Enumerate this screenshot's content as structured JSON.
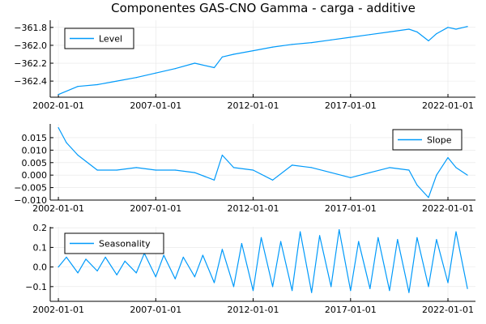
{
  "title": "Componentes GAS-CNO Gamma - carga - additive",
  "colors": {
    "series": "#009AFA",
    "grid": "#e6e6e6",
    "axis": "#000000"
  },
  "chart_data": [
    {
      "type": "line",
      "x_type": "date",
      "x_range": [
        "2001-08-01",
        "2023-06-01"
      ],
      "x_ticks": [
        "2002-01-01",
        "2007-01-01",
        "2012-01-01",
        "2017-01-01",
        "2022-01-01"
      ],
      "ylim": [
        -362.58,
        -361.72
      ],
      "y_ticks": [
        -362.4,
        -362.2,
        -362.0,
        -361.8
      ],
      "y_tick_labels": [
        "−362.4",
        "−362.2",
        "−362.0",
        "−361.8"
      ],
      "grid": true,
      "legend": {
        "position": "top-left",
        "entries": [
          "Level"
        ]
      },
      "series": [
        {
          "name": "Level",
          "points": [
            [
              "2002-01-01",
              -362.55
            ],
            [
              "2003-01-01",
              -362.46
            ],
            [
              "2004-01-01",
              -362.44
            ],
            [
              "2005-01-01",
              -362.4
            ],
            [
              "2006-01-01",
              -362.36
            ],
            [
              "2007-01-01",
              -362.31
            ],
            [
              "2008-01-01",
              -362.26
            ],
            [
              "2009-01-01",
              -362.2
            ],
            [
              "2010-01-01",
              -362.25
            ],
            [
              "2010-06-01",
              -362.13
            ],
            [
              "2011-01-01",
              -362.1
            ],
            [
              "2012-01-01",
              -362.06
            ],
            [
              "2013-01-01",
              -362.02
            ],
            [
              "2014-01-01",
              -361.99
            ],
            [
              "2015-01-01",
              -361.97
            ],
            [
              "2016-01-01",
              -361.94
            ],
            [
              "2017-01-01",
              -361.91
            ],
            [
              "2018-01-01",
              -361.88
            ],
            [
              "2019-01-01",
              -361.85
            ],
            [
              "2020-01-01",
              -361.82
            ],
            [
              "2020-06-01",
              -361.85
            ],
            [
              "2021-01-01",
              -361.95
            ],
            [
              "2021-06-01",
              -361.87
            ],
            [
              "2022-01-01",
              -361.8
            ],
            [
              "2022-06-01",
              -361.82
            ],
            [
              "2023-01-01",
              -361.79
            ]
          ]
        }
      ]
    },
    {
      "type": "line",
      "x_type": "date",
      "x_range": [
        "2001-08-01",
        "2023-06-01"
      ],
      "x_ticks": [
        "2002-01-01",
        "2007-01-01",
        "2012-01-01",
        "2017-01-01",
        "2022-01-01"
      ],
      "ylim": [
        -0.01,
        0.0205
      ],
      "y_ticks": [
        -0.01,
        -0.005,
        0.0,
        0.005,
        0.01,
        0.015
      ],
      "y_tick_labels": [
        "−0.010",
        "−0.005",
        "0.000",
        "0.005",
        "0.010",
        "0.015"
      ],
      "grid": true,
      "legend": {
        "position": "top-right",
        "entries": [
          "Slope"
        ]
      },
      "series": [
        {
          "name": "Slope",
          "points": [
            [
              "2002-01-01",
              0.019
            ],
            [
              "2002-06-01",
              0.013
            ],
            [
              "2003-01-01",
              0.008
            ],
            [
              "2004-01-01",
              0.002
            ],
            [
              "2005-01-01",
              0.002
            ],
            [
              "2006-01-01",
              0.003
            ],
            [
              "2007-01-01",
              0.002
            ],
            [
              "2008-01-01",
              0.002
            ],
            [
              "2009-01-01",
              0.001
            ],
            [
              "2010-01-01",
              -0.002
            ],
            [
              "2010-06-01",
              0.008
            ],
            [
              "2011-01-01",
              0.003
            ],
            [
              "2012-01-01",
              0.002
            ],
            [
              "2013-01-01",
              -0.002
            ],
            [
              "2014-01-01",
              0.004
            ],
            [
              "2015-01-01",
              0.003
            ],
            [
              "2016-01-01",
              0.001
            ],
            [
              "2017-01-01",
              -0.001
            ],
            [
              "2018-01-01",
              0.001
            ],
            [
              "2019-01-01",
              0.003
            ],
            [
              "2020-01-01",
              0.002
            ],
            [
              "2020-06-01",
              -0.004
            ],
            [
              "2021-01-01",
              -0.009
            ],
            [
              "2021-06-01",
              0.0
            ],
            [
              "2022-01-01",
              0.007
            ],
            [
              "2022-06-01",
              0.003
            ],
            [
              "2023-01-01",
              0.0
            ]
          ]
        }
      ]
    },
    {
      "type": "line",
      "x_type": "date",
      "x_range": [
        "2001-08-01",
        "2023-06-01"
      ],
      "x_ticks": [
        "2002-01-01",
        "2007-01-01",
        "2012-01-01",
        "2017-01-01",
        "2022-01-01"
      ],
      "ylim": [
        -0.175,
        0.205
      ],
      "y_ticks": [
        -0.1,
        0.0,
        0.1,
        0.2
      ],
      "y_tick_labels": [
        "−0.1",
        "0.0",
        "0.1",
        "0.2"
      ],
      "grid": true,
      "legend": {
        "position": "top-left",
        "entries": [
          "Seasonality"
        ]
      },
      "series": [
        {
          "name": "Seasonality",
          "points": [
            [
              "2002-01-01",
              0.0
            ],
            [
              "2002-06-01",
              0.05
            ],
            [
              "2003-01-01",
              -0.03
            ],
            [
              "2003-06-01",
              0.04
            ],
            [
              "2004-01-01",
              -0.02
            ],
            [
              "2004-06-01",
              0.05
            ],
            [
              "2005-01-01",
              -0.04
            ],
            [
              "2005-06-01",
              0.03
            ],
            [
              "2006-01-01",
              -0.03
            ],
            [
              "2006-06-01",
              0.07
            ],
            [
              "2007-01-01",
              -0.05
            ],
            [
              "2007-06-01",
              0.06
            ],
            [
              "2008-01-01",
              -0.06
            ],
            [
              "2008-06-01",
              0.05
            ],
            [
              "2009-01-01",
              -0.05
            ],
            [
              "2009-06-01",
              0.06
            ],
            [
              "2010-01-01",
              -0.08
            ],
            [
              "2010-06-01",
              0.09
            ],
            [
              "2011-01-01",
              -0.1
            ],
            [
              "2011-06-01",
              0.12
            ],
            [
              "2012-01-01",
              -0.12
            ],
            [
              "2012-06-01",
              0.15
            ],
            [
              "2013-01-01",
              -0.1
            ],
            [
              "2013-06-01",
              0.13
            ],
            [
              "2014-01-01",
              -0.12
            ],
            [
              "2014-06-01",
              0.18
            ],
            [
              "2015-01-01",
              -0.13
            ],
            [
              "2015-06-01",
              0.16
            ],
            [
              "2016-01-01",
              -0.1
            ],
            [
              "2016-06-01",
              0.19
            ],
            [
              "2017-01-01",
              -0.12
            ],
            [
              "2017-06-01",
              0.13
            ],
            [
              "2018-01-01",
              -0.11
            ],
            [
              "2018-06-01",
              0.15
            ],
            [
              "2019-01-01",
              -0.12
            ],
            [
              "2019-06-01",
              0.14
            ],
            [
              "2020-01-01",
              -0.13
            ],
            [
              "2020-06-01",
              0.15
            ],
            [
              "2021-01-01",
              -0.1
            ],
            [
              "2021-06-01",
              0.14
            ],
            [
              "2022-01-01",
              -0.08
            ],
            [
              "2022-06-01",
              0.18
            ],
            [
              "2023-01-01",
              -0.11
            ]
          ]
        }
      ]
    }
  ]
}
